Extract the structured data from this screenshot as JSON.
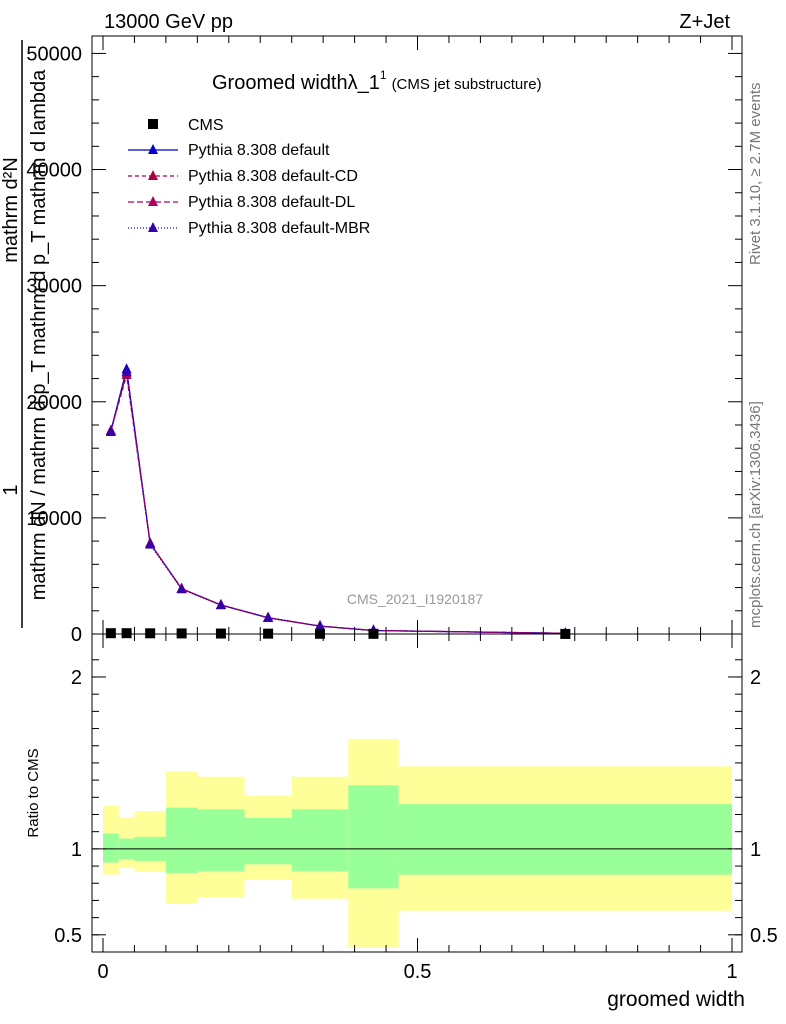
{
  "header": {
    "energy_label": "13000 GeV pp",
    "process_label": "Z+Jet"
  },
  "side_labels": {
    "rivet": "Rivet 3.1.10, ≥ 2.7M events",
    "mcplots": "mcplots.cern.ch [arXiv:1306.3436]"
  },
  "chart_data": [
    {
      "type": "line",
      "panel": "main",
      "title": "Groomed widthλ_1",
      "title_sup": "1",
      "subtitle": "(CMS jet substructure)",
      "analysis_id": "CMS_2021_I1920187",
      "ylabel_lines": [
        "1",
        "mathrm dN / mathrm d p_T mathrm d p_T mathrm d lambda",
        "mathrm d²N"
      ],
      "xlim": [
        0,
        1
      ],
      "ylim": [
        0,
        51500
      ],
      "y_ticks": [
        0,
        10000,
        20000,
        30000,
        40000,
        50000
      ],
      "y_tick_labels": [
        "0",
        "10000",
        "20000",
        "30000",
        "40000",
        "50000"
      ],
      "x_bins": [
        [
          0.0,
          0.025
        ],
        [
          0.025,
          0.05
        ],
        [
          0.05,
          0.1
        ],
        [
          0.1,
          0.15
        ],
        [
          0.15,
          0.225
        ],
        [
          0.225,
          0.3
        ],
        [
          0.3,
          0.39
        ],
        [
          0.39,
          0.47
        ],
        [
          0.47,
          1.0
        ]
      ],
      "cms": {
        "name": "CMS",
        "x": [
          0.0125,
          0.0375,
          0.075,
          0.125,
          0.1875,
          0.2625,
          0.345,
          0.43,
          0.735
        ],
        "y": [
          70,
          70,
          60,
          50,
          40,
          30,
          20,
          15,
          5
        ]
      },
      "series": [
        {
          "name": "Pythia 8.308 default",
          "color": "#0000cc",
          "dash": "",
          "x": [
            0.0125,
            0.0375,
            0.075,
            0.125,
            0.1875,
            0.2625,
            0.345,
            0.43,
            0.735
          ],
          "y": [
            17500,
            22800,
            7800,
            3900,
            2500,
            1400,
            680,
            300,
            60
          ]
        },
        {
          "name": "Pythia 8.308 default-CD",
          "color": "#aa0044",
          "dash": "4,3",
          "x": [
            0.0125,
            0.0375,
            0.075,
            0.125,
            0.1875,
            0.2625,
            0.345,
            0.43,
            0.735
          ],
          "y": [
            17500,
            22300,
            7800,
            3900,
            2500,
            1400,
            680,
            300,
            60
          ]
        },
        {
          "name": "Pythia 8.308 default-DL",
          "color": "#aa0066",
          "dash": "6,3",
          "x": [
            0.0125,
            0.0375,
            0.075,
            0.125,
            0.1875,
            0.2625,
            0.345,
            0.43,
            0.735
          ],
          "y": [
            17500,
            22500,
            7800,
            3900,
            2500,
            1400,
            680,
            300,
            60
          ]
        },
        {
          "name": "Pythia 8.308 default-MBR",
          "color": "#3300aa",
          "dash": "1,2",
          "x": [
            0.0125,
            0.0375,
            0.075,
            0.125,
            0.1875,
            0.2625,
            0.345,
            0.43,
            0.735
          ],
          "y": [
            17400,
            22600,
            7700,
            3850,
            2480,
            1390,
            670,
            300,
            60
          ]
        }
      ]
    },
    {
      "type": "area",
      "panel": "ratio",
      "ylabel": "Ratio to CMS",
      "xlabel": "groomed width",
      "xlim": [
        0,
        1
      ],
      "ylim": [
        0.4,
        2.25
      ],
      "y_ticks": [
        0.5,
        1,
        2
      ],
      "y_tick_labels": [
        "0.5",
        "1",
        "2"
      ],
      "x_ticks": [
        0,
        0.5,
        1
      ],
      "x_tick_labels": [
        "0",
        "0.5",
        "1"
      ],
      "bands": [
        {
          "x0": 0.0,
          "x1": 0.025,
          "inner": [
            0.92,
            1.09
          ],
          "outer": [
            0.85,
            1.25
          ]
        },
        {
          "x0": 0.025,
          "x1": 0.05,
          "inner": [
            0.94,
            1.06
          ],
          "outer": [
            0.89,
            1.18
          ]
        },
        {
          "x0": 0.05,
          "x1": 0.1,
          "inner": [
            0.93,
            1.07
          ],
          "outer": [
            0.87,
            1.22
          ]
        },
        {
          "x0": 0.1,
          "x1": 0.15,
          "inner": [
            0.86,
            1.24
          ],
          "outer": [
            0.68,
            1.45
          ]
        },
        {
          "x0": 0.15,
          "x1": 0.225,
          "inner": [
            0.87,
            1.23
          ],
          "outer": [
            0.72,
            1.42
          ]
        },
        {
          "x0": 0.225,
          "x1": 0.3,
          "inner": [
            0.91,
            1.18
          ],
          "outer": [
            0.82,
            1.31
          ]
        },
        {
          "x0": 0.3,
          "x1": 0.39,
          "inner": [
            0.87,
            1.23
          ],
          "outer": [
            0.71,
            1.42
          ]
        },
        {
          "x0": 0.39,
          "x1": 0.47,
          "inner": [
            0.77,
            1.37
          ],
          "outer": [
            0.43,
            1.64
          ]
        },
        {
          "x0": 0.47,
          "x1": 1.0,
          "inner": [
            0.85,
            1.26
          ],
          "outer": [
            0.64,
            1.48
          ]
        }
      ],
      "band_colors": {
        "inner": "#99ff99",
        "outer": "#ffff99"
      },
      "reference_line": 1
    }
  ]
}
